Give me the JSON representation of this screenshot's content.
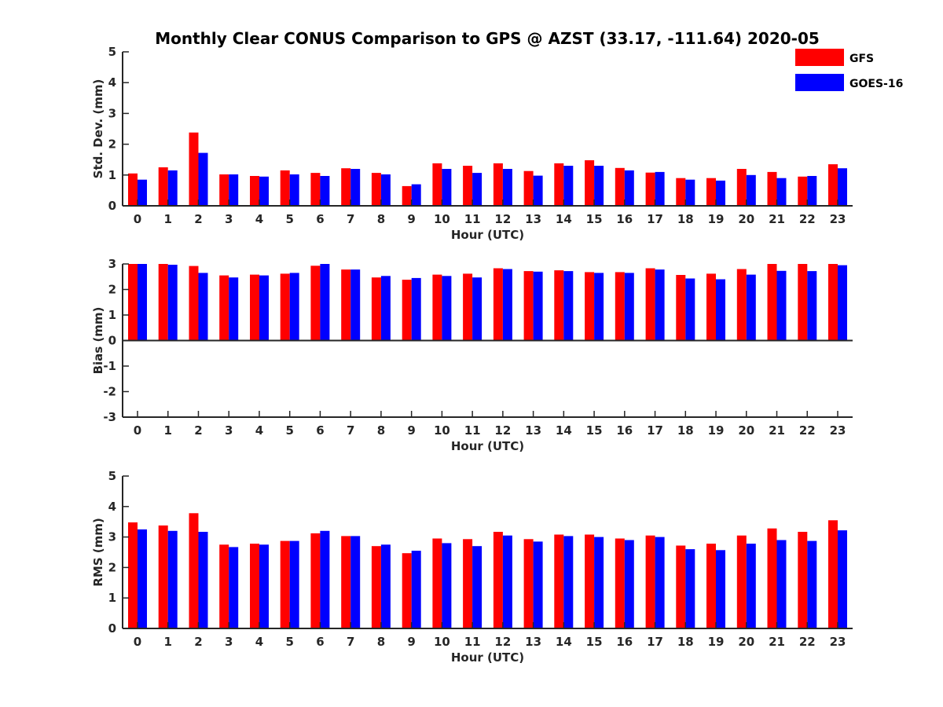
{
  "chart_data": {
    "type": "bar",
    "title": "Monthly Clear CONUS Comparison to GPS @ AZST (33.17, -111.64) 2020-05",
    "categories": [
      "0",
      "1",
      "2",
      "3",
      "4",
      "5",
      "6",
      "7",
      "8",
      "9",
      "10",
      "11",
      "12",
      "13",
      "14",
      "15",
      "16",
      "17",
      "18",
      "19",
      "20",
      "21",
      "22",
      "23"
    ],
    "legend": [
      {
        "name": "GFS",
        "color": "#ff0000"
      },
      {
        "name": "GOES-16",
        "color": "#0000ff"
      }
    ],
    "legend_position": "top-right",
    "panels": [
      {
        "name": "std-dev",
        "xlabel": "Hour (UTC)",
        "ylabel": "Std. Dev. (mm)",
        "ylim": [
          0,
          5
        ],
        "yticks": [
          "0",
          "1",
          "2",
          "3",
          "4",
          "5"
        ],
        "series": [
          {
            "name": "GFS",
            "color": "#ff0000",
            "values": [
              1.05,
              1.25,
              2.38,
              1.02,
              0.97,
              1.15,
              1.07,
              1.22,
              1.07,
              0.64,
              1.38,
              1.3,
              1.38,
              1.13,
              1.38,
              1.48,
              1.23,
              1.08,
              0.9,
              0.9,
              1.2,
              1.1,
              0.95,
              1.35
            ]
          },
          {
            "name": "GOES-16",
            "color": "#0000ff",
            "values": [
              0.85,
              1.15,
              1.72,
              1.02,
              0.95,
              1.02,
              0.97,
              1.2,
              1.02,
              0.7,
              1.2,
              1.07,
              1.2,
              0.98,
              1.3,
              1.3,
              1.15,
              1.1,
              0.85,
              0.82,
              1.0,
              0.9,
              0.97,
              1.22
            ]
          }
        ]
      },
      {
        "name": "bias",
        "xlabel": "Hour (UTC)",
        "ylabel": "Bias (mm)",
        "ylim": [
          -3,
          3
        ],
        "yticks": [
          "-3",
          "-2",
          "-1",
          "0",
          "1",
          "2",
          "3"
        ],
        "series": [
          {
            "name": "GFS",
            "color": "#ff0000",
            "values": [
              3.0,
              3.0,
              2.92,
              2.55,
              2.58,
              2.62,
              2.93,
              2.78,
              2.47,
              2.38,
              2.58,
              2.62,
              2.83,
              2.72,
              2.75,
              2.68,
              2.68,
              2.83,
              2.57,
              2.62,
              2.8,
              3.0,
              3.0,
              3.0
            ]
          },
          {
            "name": "GOES-16",
            "color": "#0000ff",
            "values": [
              3.0,
              2.97,
              2.65,
              2.47,
              2.55,
              2.65,
              3.0,
              2.78,
              2.53,
              2.45,
              2.53,
              2.47,
              2.8,
              2.7,
              2.72,
              2.65,
              2.65,
              2.78,
              2.43,
              2.4,
              2.58,
              2.73,
              2.72,
              2.95
            ]
          }
        ]
      },
      {
        "name": "rms",
        "xlabel": "Hour (UTC)",
        "ylabel": "RMS (mm)",
        "ylim": [
          0,
          5
        ],
        "yticks": [
          "0",
          "1",
          "2",
          "3",
          "4",
          "5"
        ],
        "series": [
          {
            "name": "GFS",
            "color": "#ff0000",
            "values": [
              3.48,
              3.38,
              3.78,
              2.75,
              2.78,
              2.87,
              3.12,
              3.03,
              2.7,
              2.47,
              2.95,
              2.93,
              3.17,
              2.93,
              3.08,
              3.08,
              2.95,
              3.05,
              2.72,
              2.78,
              3.05,
              3.28,
              3.17,
              3.55
            ]
          },
          {
            "name": "GOES-16",
            "color": "#0000ff",
            "values": [
              3.25,
              3.2,
              3.17,
              2.67,
              2.75,
              2.87,
              3.2,
              3.03,
              2.75,
              2.55,
              2.8,
              2.7,
              3.05,
              2.85,
              3.03,
              3.0,
              2.9,
              3.0,
              2.6,
              2.57,
              2.78,
              2.9,
              2.87,
              3.22
            ]
          }
        ]
      }
    ]
  }
}
